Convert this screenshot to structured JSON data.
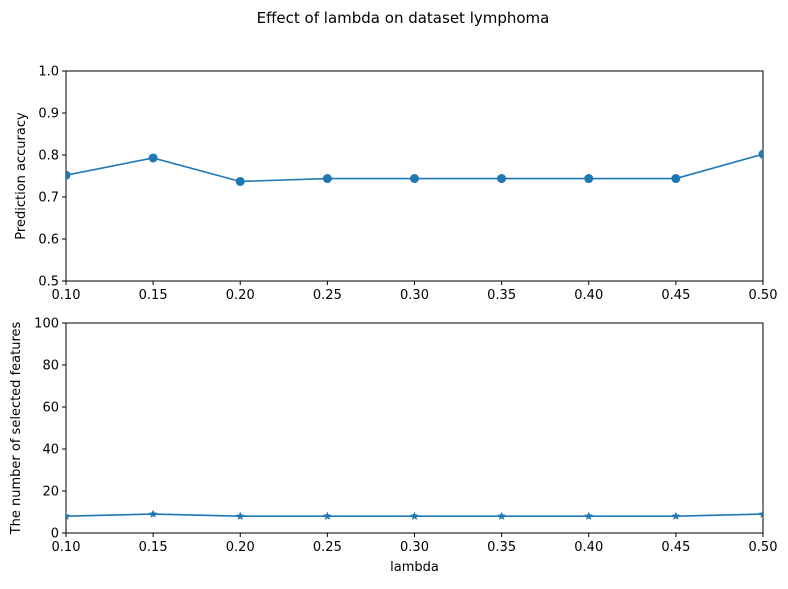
{
  "chart_data": {
    "title": "Effect of lambda on dataset lymphoma",
    "subplots": [
      {
        "type": "line",
        "marker": "circle",
        "x": [
          0.1,
          0.15,
          0.2,
          0.25,
          0.3,
          0.35,
          0.4,
          0.45,
          0.5
        ],
        "y": [
          0.752,
          0.793,
          0.737,
          0.744,
          0.744,
          0.744,
          0.744,
          0.744,
          0.802
        ],
        "xlabel": "",
        "ylabel": "Prediction accuracy",
        "xlim": [
          0.1,
          0.5
        ],
        "ylim": [
          0.5,
          1.0
        ],
        "xticks": [
          "0.10",
          "0.15",
          "0.20",
          "0.25",
          "0.30",
          "0.35",
          "0.40",
          "0.45",
          "0.50"
        ],
        "yticks": [
          "0.5",
          "0.6",
          "0.7",
          "0.8",
          "0.9",
          "1.0"
        ],
        "grid": false
      },
      {
        "type": "line",
        "marker": "star",
        "x": [
          0.1,
          0.15,
          0.2,
          0.25,
          0.3,
          0.35,
          0.4,
          0.45,
          0.5
        ],
        "y": [
          8,
          9,
          8,
          8,
          8,
          8,
          8,
          8,
          9
        ],
        "xlabel": "lambda",
        "ylabel": "The number of selected features",
        "xlim": [
          0.1,
          0.5
        ],
        "ylim": [
          0,
          100
        ],
        "xticks": [
          "0.10",
          "0.15",
          "0.20",
          "0.25",
          "0.30",
          "0.35",
          "0.40",
          "0.45",
          "0.50"
        ],
        "yticks": [
          "0",
          "20",
          "40",
          "60",
          "80",
          "100"
        ],
        "grid": false
      }
    ],
    "colors": {
      "series": "#1f77b4",
      "axes": "#000000"
    }
  }
}
